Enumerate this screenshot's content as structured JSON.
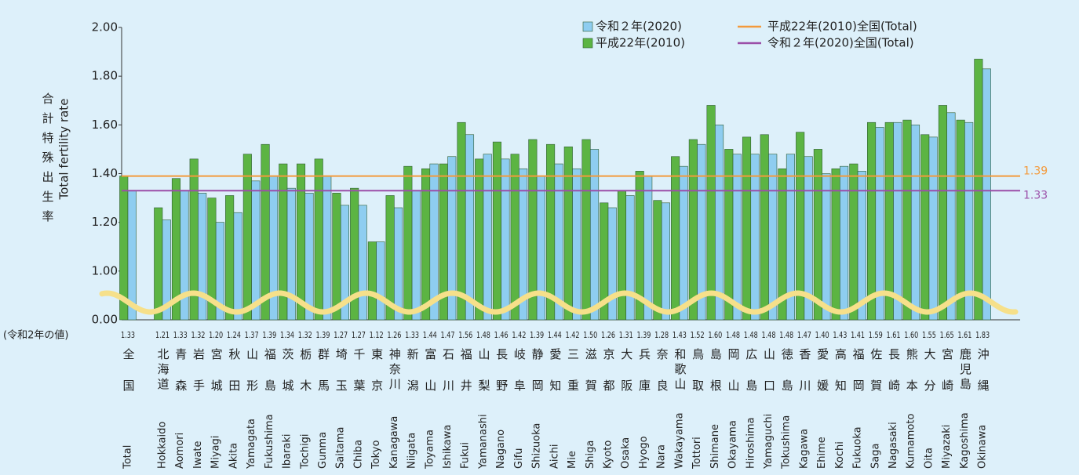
{
  "chart_data": {
    "type": "bar",
    "y_label_jp": "合計特殊出生率",
    "y_label": "Total fertility rate",
    "value_row_label": "(令和2年の値)",
    "baseline_label": "0.00",
    "ylim": [
      0.8,
      2.0
    ],
    "yticks": [
      {
        "value": 1.0,
        "label": "1.00"
      },
      {
        "value": 1.2,
        "label": "1.20"
      },
      {
        "value": 1.4,
        "label": "1.40"
      },
      {
        "value": 1.6,
        "label": "1.60"
      },
      {
        "value": 1.8,
        "label": "1.80"
      },
      {
        "value": 2.0,
        "label": "2.00"
      }
    ],
    "categories": [
      "Total",
      "Hokkaido",
      "Aomori",
      "Iwate",
      "Miyagi",
      "Akita",
      "Yamagata",
      "Fukushima",
      "Ibaraki",
      "Tochigi",
      "Gunma",
      "Saitama",
      "Chiba",
      "Tokyo",
      "Kanagawa",
      "Niigata",
      "Toyama",
      "Ishikawa",
      "Fukui",
      "Yamanashi",
      "Nagano",
      "Gifu",
      "Shizuoka",
      "Aichi",
      "Mie",
      "Shiga",
      "Kyoto",
      "Osaka",
      "Hyogo",
      "Nara",
      "Wakayama",
      "Tottori",
      "Shimane",
      "Okayama",
      "Hiroshima",
      "Yamaguchi",
      "Tokushima",
      "Kagawa",
      "Ehime",
      "Kochi",
      "Fukuoka",
      "Saga",
      "Nagasaki",
      "Kumamoto",
      "Oita",
      "Miyazaki",
      "Kagoshima",
      "Okinawa"
    ],
    "categories_jp": [
      "全国",
      "北海道",
      "青森",
      "岩手",
      "宮城",
      "秋田",
      "山形",
      "福島",
      "茨城",
      "栃木",
      "群馬",
      "埼玉",
      "千葉",
      "東京",
      "神奈川",
      "新潟",
      "富山",
      "石川",
      "福井",
      "山梨",
      "長野",
      "岐阜",
      "静岡",
      "愛知",
      "三重",
      "滋賀",
      "京都",
      "大阪",
      "兵庫",
      "奈良",
      "和歌山",
      "鳥取",
      "島根",
      "岡山",
      "広島",
      "山口",
      "徳島",
      "香川",
      "愛媛",
      "高知",
      "福岡",
      "佐賀",
      "長崎",
      "熊本",
      "大分",
      "宮崎",
      "鹿児島",
      "沖縄"
    ],
    "series": [
      {
        "name": "平成22年(2010)",
        "color": "#5cb443",
        "values": [
          1.39,
          1.26,
          1.38,
          1.46,
          1.3,
          1.31,
          1.48,
          1.52,
          1.44,
          1.44,
          1.46,
          1.32,
          1.34,
          1.12,
          1.31,
          1.43,
          1.42,
          1.44,
          1.61,
          1.46,
          1.53,
          1.48,
          1.54,
          1.52,
          1.51,
          1.54,
          1.28,
          1.33,
          1.41,
          1.29,
          1.47,
          1.54,
          1.68,
          1.5,
          1.55,
          1.56,
          1.42,
          1.57,
          1.5,
          1.42,
          1.44,
          1.61,
          1.61,
          1.62,
          1.56,
          1.68,
          1.62,
          1.87
        ]
      },
      {
        "name": "令和２年(2020)",
        "color": "#8ecdf0",
        "values": [
          1.33,
          1.21,
          1.33,
          1.32,
          1.2,
          1.24,
          1.37,
          1.39,
          1.34,
          1.32,
          1.39,
          1.27,
          1.27,
          1.12,
          1.26,
          1.33,
          1.44,
          1.47,
          1.56,
          1.48,
          1.46,
          1.42,
          1.39,
          1.44,
          1.42,
          1.5,
          1.26,
          1.31,
          1.39,
          1.28,
          1.43,
          1.52,
          1.6,
          1.48,
          1.48,
          1.48,
          1.48,
          1.47,
          1.4,
          1.43,
          1.41,
          1.59,
          1.61,
          1.6,
          1.55,
          1.65,
          1.61,
          1.83
        ],
        "value_labels": [
          "1.33",
          "1.21",
          "1.33",
          "1.32",
          "1.20",
          "1.24",
          "1.37",
          "1.39",
          "1.34",
          "1.32",
          "1.39",
          "1.27",
          "1.27",
          "1.12",
          "1.26",
          "1.33",
          "1.44",
          "1.47",
          "1.56",
          "1.48",
          "1.46",
          "1.42",
          "1.39",
          "1.44",
          "1.42",
          "1.50",
          "1.26",
          "1.31",
          "1.39",
          "1.28",
          "1.43",
          "1.52",
          "1.60",
          "1.48",
          "1.48",
          "1.48",
          "1.48",
          "1.47",
          "1.40",
          "1.43",
          "1.41",
          "1.59",
          "1.61",
          "1.60",
          "1.55",
          "1.65",
          "1.61",
          "1.83"
        ]
      }
    ],
    "reference_lines": [
      {
        "name": "令和２年(2020)全国(Total)",
        "value": 1.33,
        "color": "#9b4fa8"
      },
      {
        "name": "平成22年(2010)全国(Total)",
        "value": 1.39,
        "color": "#f39a3c"
      }
    ]
  }
}
